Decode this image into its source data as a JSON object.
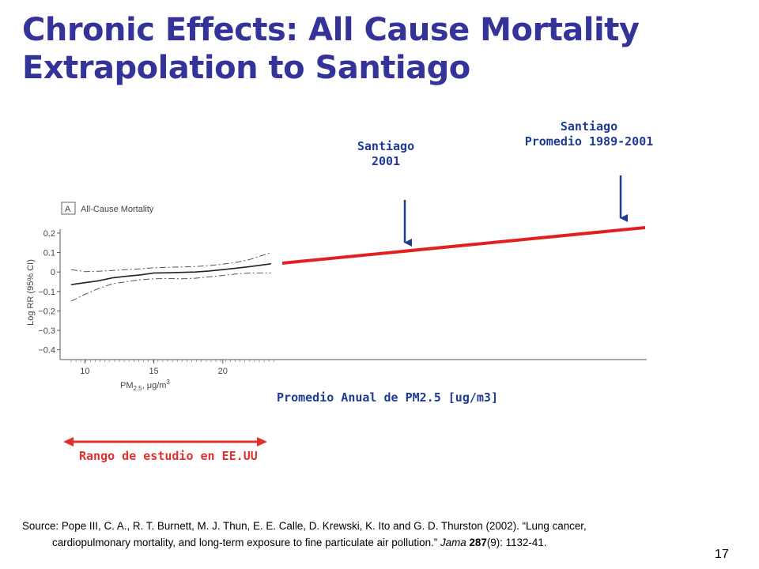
{
  "title": {
    "line1": "Chronic Effects: All Cause Mortality",
    "line2": "Extrapolation to Santiago"
  },
  "annotations": {
    "santiago_2001": {
      "line1": "Santiago",
      "line2": "2001"
    },
    "santiago_avg": {
      "line1": "Santiago",
      "line2": "Promedio 1989-2001"
    }
  },
  "extrapolation_xlabel": "Promedio Anual de PM2.5 [ug/m3]",
  "range_label": "Rango de estudio en EE.UU",
  "source": {
    "line1": "Source: Pope III, C. A., R. T. Burnett, M. J. Thun, E. E. Calle, D. Krewski, K. Ito and G. D. Thurston (2002). “Lung cancer,",
    "line2_plain": "cardiopulmonary mortality, and long-term exposure to fine particulate air pollution.” ",
    "journal": "Jama",
    "volume": "287",
    "pages": "(9): 1132-41."
  },
  "page_number": "17",
  "colors": {
    "title": "#333399",
    "annotation": "#1f3a93",
    "extrapolation_line": "#e32020",
    "range_arrow": "#e03030"
  },
  "chart_data": {
    "type": "line",
    "panel_letter": "A",
    "panel_title": "All-Cause Mortality",
    "ylabel": "Log RR (95% CI)",
    "xlabel": "PM2.5, μg/m3",
    "ylim": [
      -0.45,
      0.22
    ],
    "xlim": [
      8.2,
      24.2
    ],
    "yticks": [
      0.2,
      0.1,
      0,
      -0.1,
      -0.2,
      -0.3,
      -0.4
    ],
    "yticklabels": [
      "0.2",
      "0.1",
      "0",
      "−0.1",
      "−0.2",
      "−0.3",
      "−0.4"
    ],
    "xticks": [
      10,
      15,
      20
    ],
    "series": [
      {
        "style": "solid",
        "x": [
          9,
          10,
          11,
          12,
          13,
          14,
          15,
          16,
          17,
          18,
          19,
          20,
          21,
          22,
          23.5
        ],
        "y": [
          -0.065,
          -0.055,
          -0.045,
          -0.03,
          -0.022,
          -0.015,
          -0.005,
          -0.004,
          -0.002,
          0.0,
          0.005,
          0.012,
          0.02,
          0.028,
          0.042
        ]
      },
      {
        "style": "dashdot",
        "x": [
          9,
          10,
          11,
          12,
          13,
          14,
          15,
          16,
          17,
          18,
          19,
          20,
          21,
          22,
          23.5
        ],
        "y": [
          0.012,
          0.002,
          0.004,
          0.008,
          0.012,
          0.016,
          0.022,
          0.024,
          0.026,
          0.028,
          0.033,
          0.04,
          0.05,
          0.065,
          0.1
        ]
      },
      {
        "style": "dashdot",
        "x": [
          9,
          10,
          11,
          12,
          13,
          14,
          15,
          16,
          17,
          18,
          19,
          20,
          21,
          22,
          23.5
        ],
        "y": [
          -0.15,
          -0.115,
          -0.085,
          -0.06,
          -0.05,
          -0.04,
          -0.035,
          -0.033,
          -0.035,
          -0.032,
          -0.025,
          -0.018,
          -0.01,
          -0.005,
          -0.005
        ]
      }
    ]
  }
}
